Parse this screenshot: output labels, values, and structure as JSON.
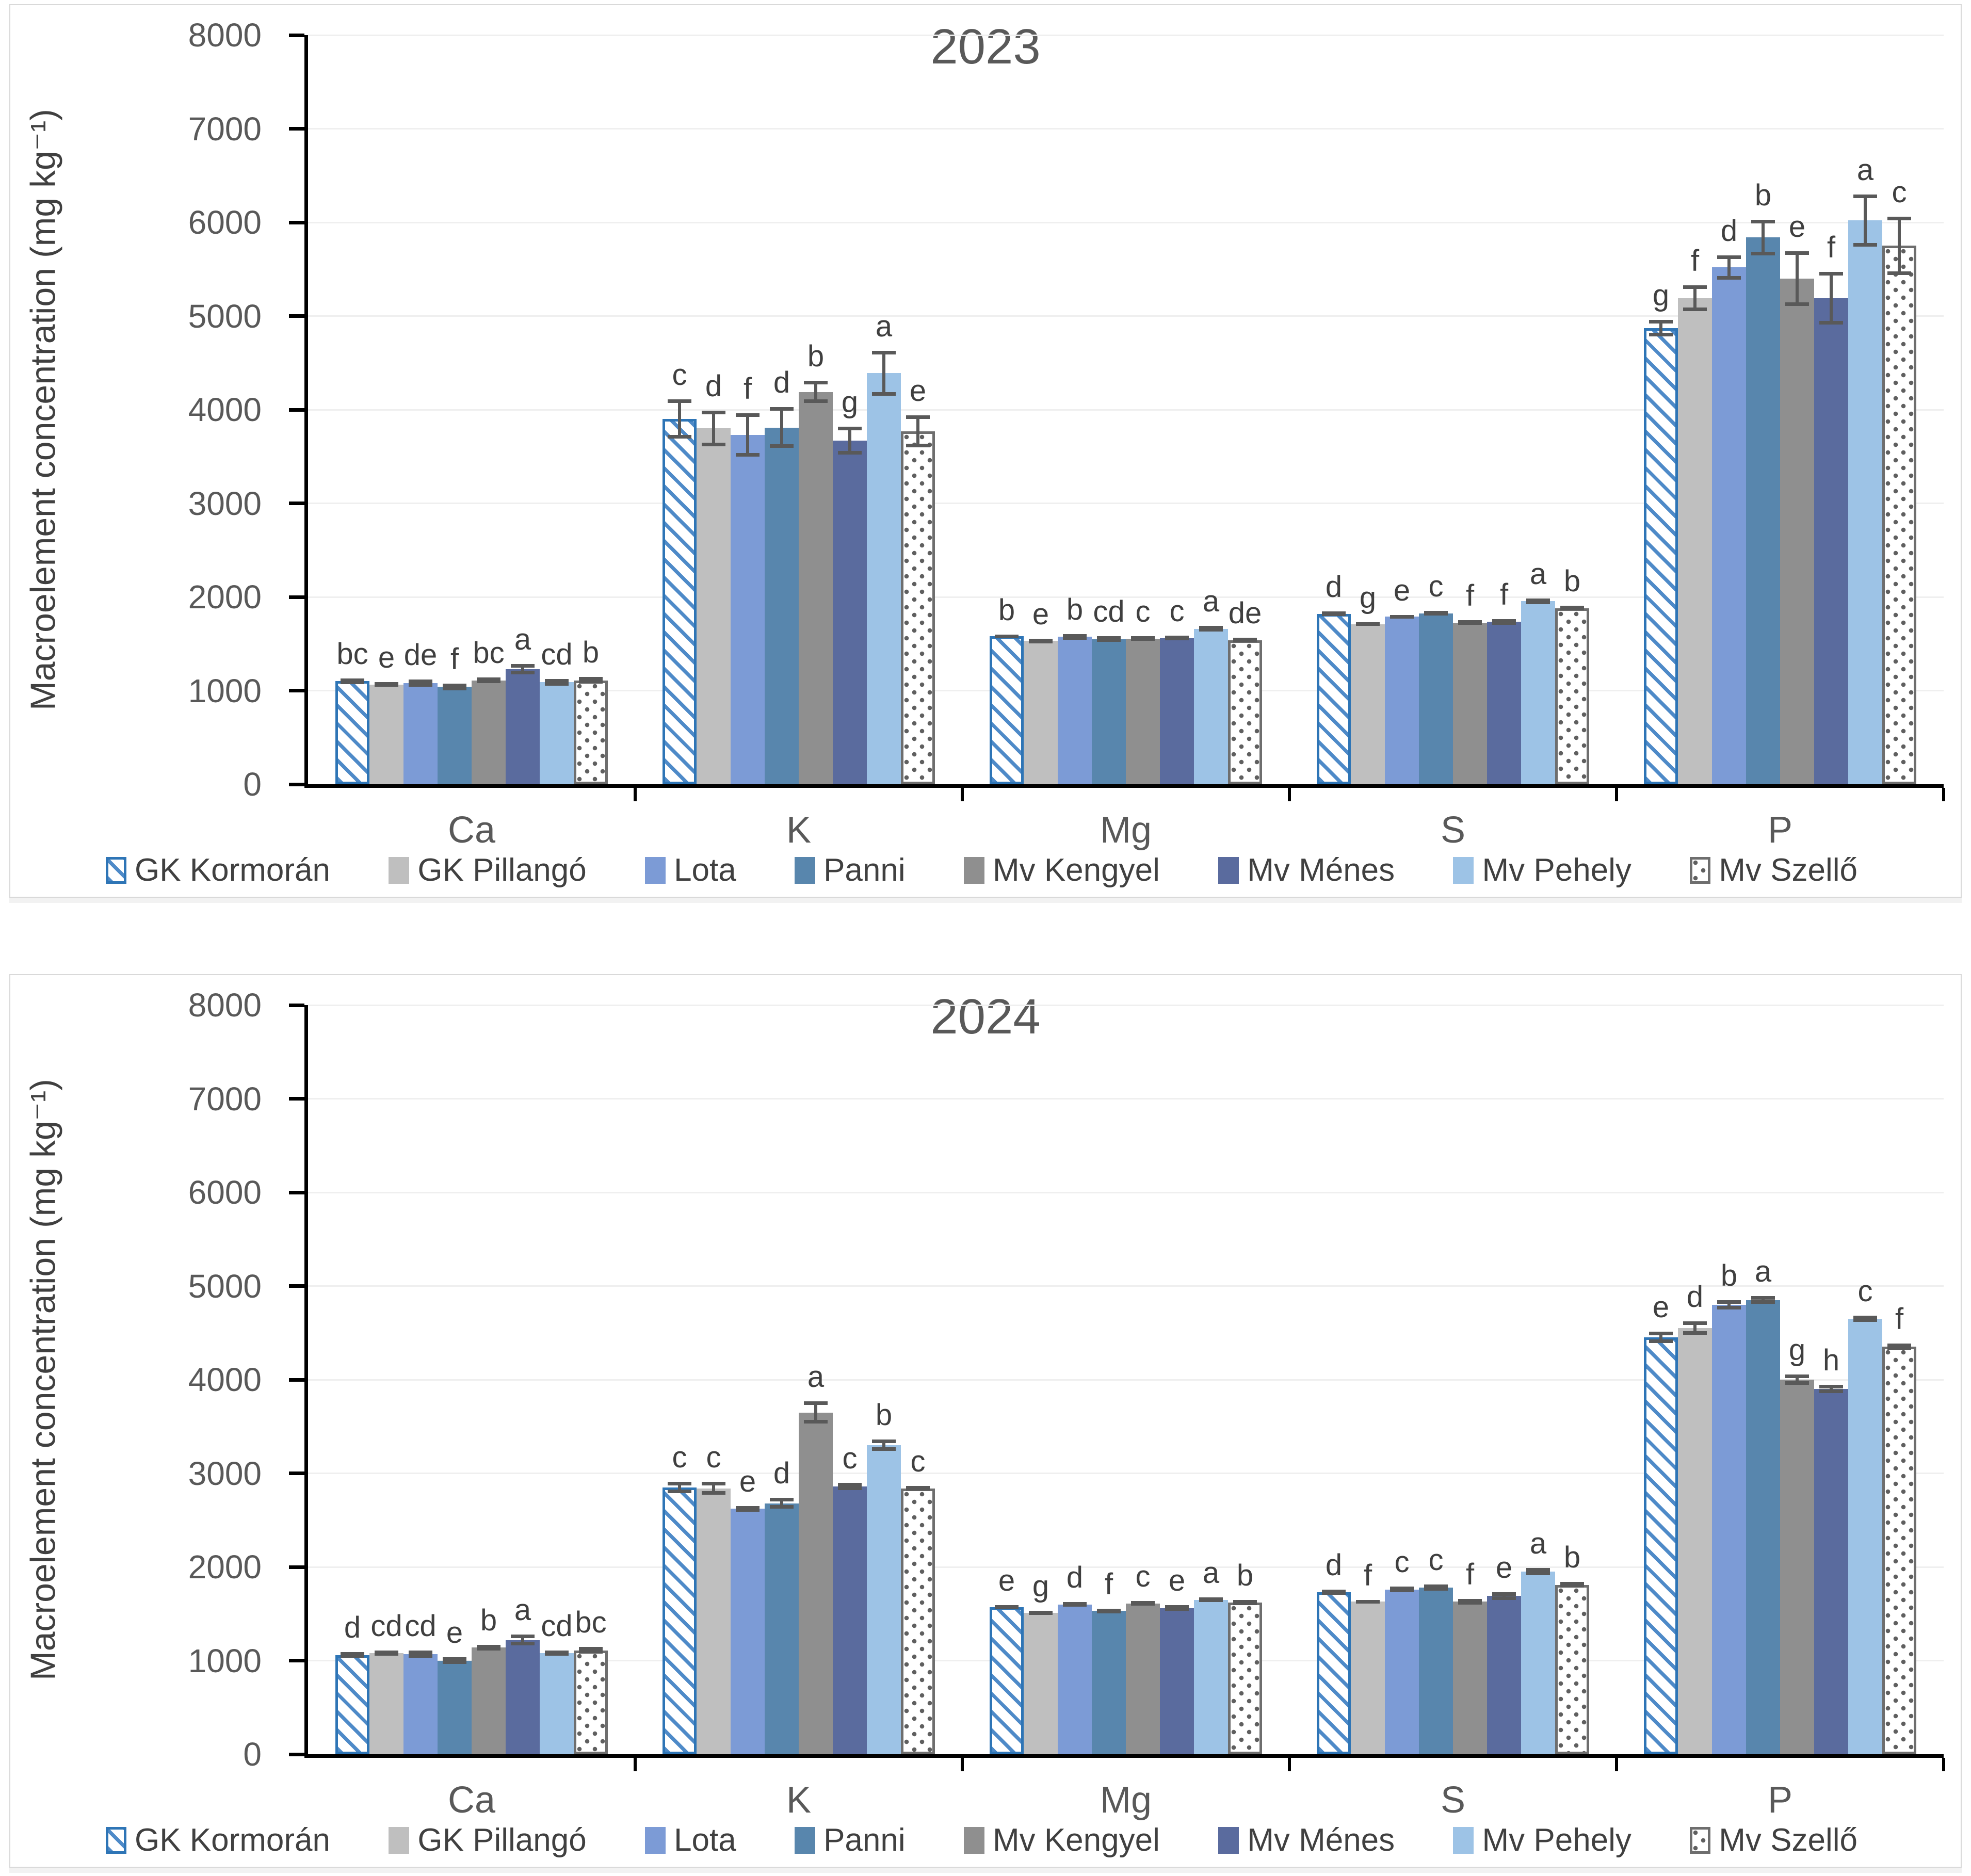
{
  "page": {
    "background": "#ffffff"
  },
  "styles": {
    "grid_color": "#EFEFEF",
    "axis_color": "#000000",
    "text_color": "#595959",
    "letter_color": "#3F3F3F",
    "error_bar_color": "#595959"
  },
  "series_styles": [
    {
      "name": "GK Kormorán",
      "pattern": "hatch",
      "color": "#2E75B6",
      "stripe_color": "#4E8AC8"
    },
    {
      "name": "GK Pillangó",
      "pattern": "solid",
      "color": "#BFBFBF"
    },
    {
      "name": "Lota",
      "pattern": "solid",
      "color": "#7C9BD6"
    },
    {
      "name": "Panni",
      "pattern": "solid",
      "color": "#5886AD"
    },
    {
      "name": "Mv Kengyel",
      "pattern": "solid",
      "color": "#8F8F8F"
    },
    {
      "name": "Mv Ménes",
      "pattern": "solid",
      "color": "#5A6B9E"
    },
    {
      "name": "Mv Pehely",
      "pattern": "solid",
      "color": "#9DC3E6"
    },
    {
      "name": "Mv Szellő",
      "pattern": "dots",
      "color": "#6E6E6E",
      "dot_color": "#5F5F5F"
    }
  ],
  "chart_data": [
    {
      "type": "bar",
      "title": "2023",
      "ylabel": "Macroelement concentration (mg kg⁻¹)",
      "xlabel": "",
      "ylim": [
        0,
        8000
      ],
      "y_step": 1000,
      "y_ticks": [
        0,
        1000,
        2000,
        3000,
        4000,
        5000,
        6000,
        7000,
        8000
      ],
      "grid": true,
      "legend_position": "bottom",
      "categories": [
        "Ca",
        "K",
        "Mg",
        "S",
        "P"
      ],
      "series": [
        {
          "name": "GK Kormorán",
          "values": [
            1100,
            3900,
            1580,
            1820,
            4870
          ],
          "errors": [
            30,
            210,
            20,
            25,
            90
          ],
          "letters": [
            "bc",
            "c",
            "b",
            "d",
            "g"
          ]
        },
        {
          "name": "GK Pillangó",
          "values": [
            1065,
            3800,
            1530,
            1710,
            5190
          ],
          "errors": [
            25,
            190,
            25,
            20,
            140
          ],
          "letters": [
            "e",
            "d",
            "e",
            "g",
            "f"
          ]
        },
        {
          "name": "Lota",
          "values": [
            1080,
            3730,
            1575,
            1790,
            5520
          ],
          "errors": [
            40,
            230,
            30,
            20,
            130
          ],
          "letters": [
            "de",
            "f",
            "b",
            "e",
            "d"
          ]
        },
        {
          "name": "Panni",
          "values": [
            1040,
            3810,
            1550,
            1825,
            5840
          ],
          "errors": [
            35,
            220,
            30,
            25,
            190
          ],
          "letters": [
            "f",
            "d",
            "cd",
            "c",
            "b"
          ]
        },
        {
          "name": "Mv Kengyel",
          "values": [
            1110,
            4190,
            1555,
            1725,
            5400
          ],
          "errors": [
            30,
            120,
            25,
            25,
            290
          ],
          "letters": [
            "bc",
            "b",
            "c",
            "f",
            "e"
          ]
        },
        {
          "name": "Mv Ménes",
          "values": [
            1230,
            3670,
            1560,
            1735,
            5190
          ],
          "errors": [
            55,
            150,
            25,
            30,
            280
          ],
          "letters": [
            "a",
            "g",
            "c",
            "f",
            "f"
          ]
        },
        {
          "name": "Mv Pehely",
          "values": [
            1090,
            4390,
            1660,
            1955,
            6020
          ],
          "errors": [
            35,
            240,
            30,
            30,
            280
          ],
          "letters": [
            "cd",
            "a",
            "a",
            "a",
            "a"
          ]
        },
        {
          "name": "Mv Szellő",
          "values": [
            1110,
            3770,
            1540,
            1880,
            5750
          ],
          "errors": [
            35,
            170,
            25,
            25,
            310
          ],
          "letters": [
            "b",
            "e",
            "de",
            "b",
            "c"
          ]
        }
      ]
    },
    {
      "type": "bar",
      "title": "2024",
      "ylabel": "Macroelement concentration (mg kg⁻¹)",
      "xlabel": "",
      "ylim": [
        0,
        8000
      ],
      "y_step": 1000,
      "y_ticks": [
        0,
        1000,
        2000,
        3000,
        4000,
        5000,
        6000,
        7000,
        8000
      ],
      "grid": true,
      "legend_position": "bottom",
      "categories": [
        "Ca",
        "K",
        "Mg",
        "S",
        "P"
      ],
      "series": [
        {
          "name": "GK Kormorán",
          "values": [
            1060,
            2850,
            1570,
            1730,
            4450
          ],
          "errors": [
            30,
            60,
            20,
            30,
            60
          ],
          "letters": [
            "d",
            "c",
            "e",
            "d",
            "e"
          ]
        },
        {
          "name": "GK Pillangó",
          "values": [
            1080,
            2840,
            1510,
            1630,
            4550
          ],
          "errors": [
            30,
            70,
            20,
            20,
            70
          ],
          "letters": [
            "cd",
            "c",
            "g",
            "f",
            "d"
          ]
        },
        {
          "name": "Lota",
          "values": [
            1070,
            2620,
            1600,
            1760,
            4800
          ],
          "errors": [
            40,
            30,
            25,
            30,
            50
          ],
          "letters": [
            "cd",
            "e",
            "d",
            "c",
            "b"
          ]
        },
        {
          "name": "Panni",
          "values": [
            1000,
            2680,
            1530,
            1780,
            4850
          ],
          "errors": [
            35,
            60,
            25,
            35,
            40
          ],
          "letters": [
            "e",
            "d",
            "f",
            "c",
            "a"
          ]
        },
        {
          "name": "Mv Kengyel",
          "values": [
            1140,
            3650,
            1610,
            1630,
            4000
          ],
          "errors": [
            30,
            120,
            25,
            30,
            55
          ],
          "letters": [
            "b",
            "a",
            "c",
            "f",
            "g"
          ]
        },
        {
          "name": "Mv Ménes",
          "values": [
            1220,
            2860,
            1560,
            1690,
            3900
          ],
          "errors": [
            60,
            40,
            30,
            40,
            45
          ],
          "letters": [
            "a",
            "c",
            "e",
            "e",
            "h"
          ]
        },
        {
          "name": "Mv Pehely",
          "values": [
            1080,
            3300,
            1650,
            1950,
            4650
          ],
          "errors": [
            25,
            60,
            25,
            40,
            35
          ],
          "letters": [
            "cd",
            "b",
            "a",
            "a",
            "c"
          ]
        },
        {
          "name": "Mv Szellő",
          "values": [
            1110,
            2840,
            1620,
            1810,
            4350
          ],
          "errors": [
            35,
            25,
            25,
            30,
            35
          ],
          "letters": [
            "bc",
            "c",
            "b",
            "b",
            "f"
          ]
        }
      ]
    }
  ]
}
